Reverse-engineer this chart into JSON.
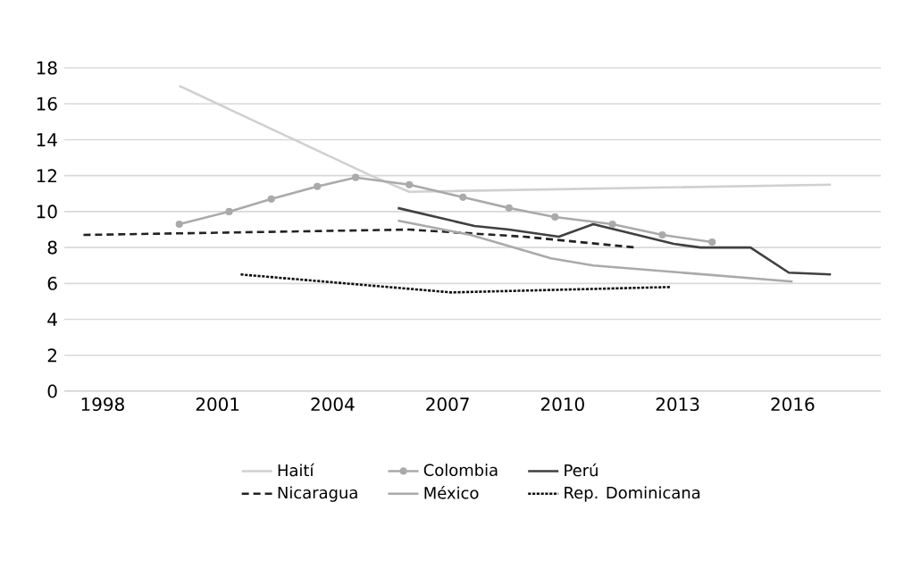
{
  "chart_data": {
    "type": "line",
    "xlim": [
      1997,
      2018.3
    ],
    "xticks": [
      1998,
      2001,
      2004,
      2007,
      2010,
      2013,
      2016
    ],
    "ylim": [
      0,
      18
    ],
    "yticks": [
      0,
      2,
      4,
      6,
      8,
      10,
      12,
      14,
      16,
      18
    ],
    "grid": "y",
    "legend": "bottom",
    "series": [
      {
        "name": "Haití",
        "color": "#d0d0d0",
        "line_style": "solid",
        "marker": "none",
        "x": [
          2000,
          2002.8,
          2005,
          2006,
          2017
        ],
        "values": [
          17,
          14.2,
          12,
          11.1,
          11.5
        ]
      },
      {
        "name": "Colombia",
        "color": "#aaaaaa",
        "line_style": "solid",
        "marker": "circle",
        "x": [
          2000,
          2001.3,
          2002.4,
          2003.6,
          2004.6,
          2006,
          2007.4,
          2008.6,
          2009.8,
          2011.3,
          2012.6,
          2013.9
        ],
        "values": [
          9.3,
          10,
          10.7,
          11.4,
          11.9,
          11.5,
          10.8,
          10.2,
          9.7,
          9.3,
          8.7,
          8.3
        ]
      },
      {
        "name": "Perú",
        "color": "#404040",
        "line_style": "solid",
        "marker": "none",
        "x": [
          2005.7,
          2007.7,
          2008.6,
          2009.9,
          2010.8,
          2012.9,
          2013.6,
          2014.9,
          2015.9,
          2017
        ],
        "values": [
          10.2,
          9.2,
          9,
          8.6,
          9.3,
          8.2,
          8,
          8,
          6.6,
          6.5
        ]
      },
      {
        "name": "Nicaragua",
        "color": "#222222",
        "line_style": "dashed",
        "marker": "none",
        "x": [
          1997.5,
          2006,
          2009,
          2011.9
        ],
        "values": [
          8.7,
          9,
          8.6,
          8
        ]
      },
      {
        "name": "México",
        "color": "#aaaaaa",
        "line_style": "solid",
        "marker": "none",
        "x": [
          2005.7,
          2007.6,
          2009.7,
          2010.8,
          2016
        ],
        "values": [
          9.5,
          8.7,
          7.4,
          7,
          6.1
        ]
      },
      {
        "name": "Rep. Dominicana",
        "color": "#111111",
        "line_style": "dotted",
        "marker": "none",
        "x": [
          2001.6,
          2007.1,
          2012.8
        ],
        "values": [
          6.5,
          5.5,
          5.8
        ]
      }
    ]
  }
}
